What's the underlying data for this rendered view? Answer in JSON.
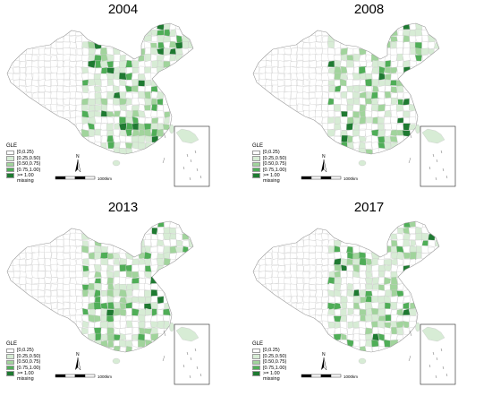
{
  "colors": {
    "class_0": "#ffffff",
    "class_1": "#d7ecd5",
    "class_2": "#a1d49c",
    "class_3": "#4fae57",
    "class_4": "#1e7a31",
    "missing": "#ffffff",
    "border": "#c8c8c8"
  },
  "legend": {
    "title": "GLE",
    "items": [
      "[0,0.25)",
      "[0.25,0.50)",
      "[0.50,0.75)",
      "[0.75,1.00)",
      ">= 1.00",
      "missing"
    ]
  },
  "scale_bar_label": "1000km",
  "north_label": "N",
  "panels": [
    {
      "year": "2004",
      "shares": [
        0.4,
        0.32,
        0.16,
        0.08,
        0.04
      ]
    },
    {
      "year": "2008",
      "shares": [
        0.46,
        0.3,
        0.14,
        0.06,
        0.04
      ]
    },
    {
      "year": "2013",
      "shares": [
        0.38,
        0.32,
        0.18,
        0.08,
        0.04
      ]
    },
    {
      "year": "2017",
      "shares": [
        0.4,
        0.34,
        0.16,
        0.07,
        0.03
      ]
    }
  ]
}
